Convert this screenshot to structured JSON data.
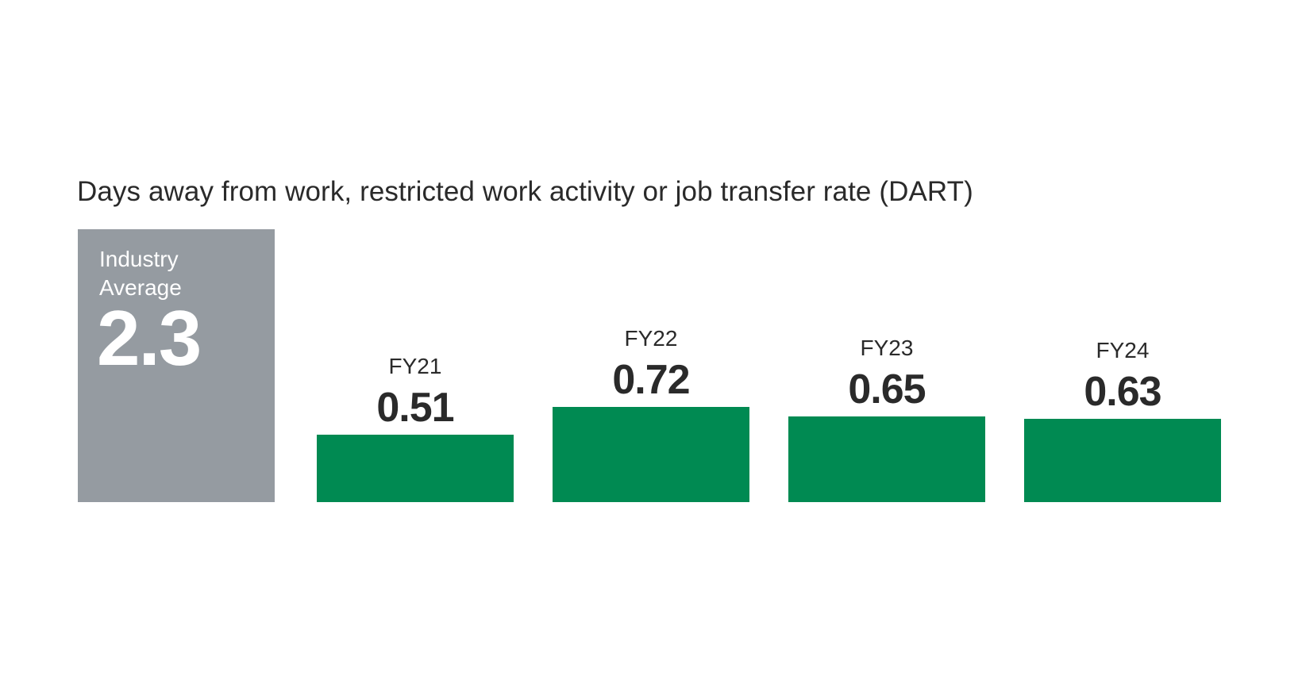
{
  "chart_data": {
    "type": "bar",
    "title": "Days away from work, restricted work activity or job transfer rate (DART)",
    "benchmark": {
      "label_line1": "Industry",
      "label_line2": "Average",
      "value": "2.3"
    },
    "categories": [
      "FY21",
      "FY22",
      "FY23",
      "FY24"
    ],
    "values": [
      0.51,
      0.72,
      0.65,
      0.63
    ],
    "value_labels": [
      "0.51",
      "0.72",
      "0.65",
      "0.63"
    ],
    "colors": {
      "bar": "#008a52",
      "benchmark": "#959ba1",
      "text": "#2a2a2a"
    }
  }
}
